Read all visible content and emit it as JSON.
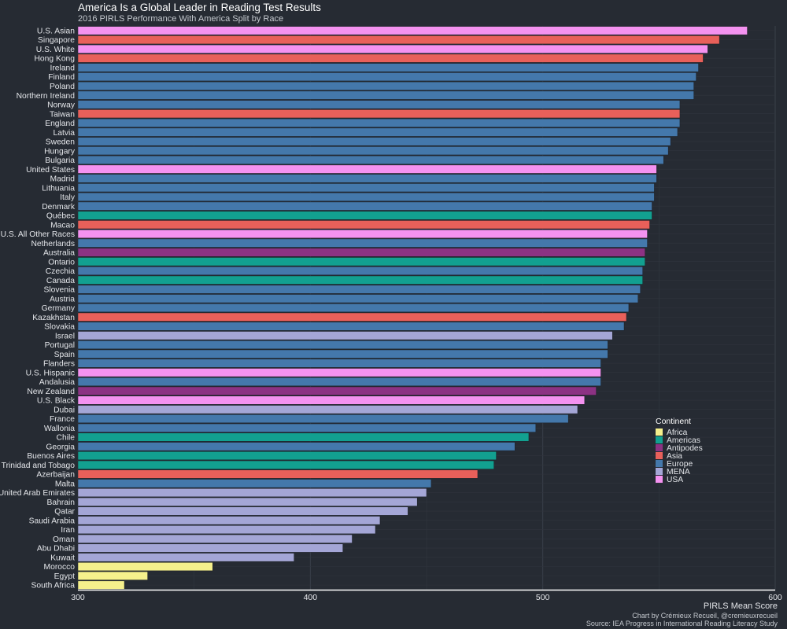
{
  "chart_data": {
    "type": "bar",
    "orientation": "horizontal",
    "title": "America Is a Global Leader in Reading Test Results",
    "subtitle": "2016 PIRLS Performance With America Split by Race",
    "xlabel": "PIRLS Mean Score",
    "ylabel": "",
    "xlim": [
      300,
      600
    ],
    "xticks": [
      300,
      400,
      500,
      600
    ],
    "grid": true,
    "legend_position": "right",
    "legend_title": "Continent",
    "legend": [
      "Africa",
      "Americas",
      "Antipodes",
      "Asia",
      "Europe",
      "MENA",
      "USA"
    ],
    "colors": {
      "Africa": "#f5f08c",
      "Americas": "#12a090",
      "Antipodes": "#8c3283",
      "Asia": "#e8605a",
      "Europe": "#4478ab",
      "MENA": "#a4a6d6",
      "USA": "#f492f0"
    },
    "caption_1": "Chart by Crémieux Recueil, @cremieuxrecueil",
    "caption_2": "Source: IEA Progress in International Reading Literacy Study",
    "bars": [
      {
        "label": "U.S. Asian",
        "value": 588,
        "group": "USA"
      },
      {
        "label": "Singapore",
        "value": 576,
        "group": "Asia"
      },
      {
        "label": "U.S. White",
        "value": 571,
        "group": "USA"
      },
      {
        "label": "Hong Kong",
        "value": 569,
        "group": "Asia"
      },
      {
        "label": "Ireland",
        "value": 567,
        "group": "Europe"
      },
      {
        "label": "Finland",
        "value": 566,
        "group": "Europe"
      },
      {
        "label": "Poland",
        "value": 565,
        "group": "Europe"
      },
      {
        "label": "Northern Ireland",
        "value": 565,
        "group": "Europe"
      },
      {
        "label": "Norway",
        "value": 559,
        "group": "Europe"
      },
      {
        "label": "Taiwan",
        "value": 559,
        "group": "Asia"
      },
      {
        "label": "England",
        "value": 559,
        "group": "Europe"
      },
      {
        "label": "Latvia",
        "value": 558,
        "group": "Europe"
      },
      {
        "label": "Sweden",
        "value": 555,
        "group": "Europe"
      },
      {
        "label": "Hungary",
        "value": 554,
        "group": "Europe"
      },
      {
        "label": "Bulgaria",
        "value": 552,
        "group": "Europe"
      },
      {
        "label": "United States",
        "value": 549,
        "group": "USA"
      },
      {
        "label": "Madrid",
        "value": 549,
        "group": "Europe"
      },
      {
        "label": "Lithuania",
        "value": 548,
        "group": "Europe"
      },
      {
        "label": "Italy",
        "value": 548,
        "group": "Europe"
      },
      {
        "label": "Denmark",
        "value": 547,
        "group": "Europe"
      },
      {
        "label": "Québec",
        "value": 547,
        "group": "Americas"
      },
      {
        "label": "Macao",
        "value": 546,
        "group": "Asia"
      },
      {
        "label": "U.S. All Other Races",
        "value": 545,
        "group": "USA"
      },
      {
        "label": "Netherlands",
        "value": 545,
        "group": "Europe"
      },
      {
        "label": "Australia",
        "value": 544,
        "group": "Antipodes"
      },
      {
        "label": "Ontario",
        "value": 544,
        "group": "Americas"
      },
      {
        "label": "Czechia",
        "value": 543,
        "group": "Europe"
      },
      {
        "label": "Canada",
        "value": 543,
        "group": "Americas"
      },
      {
        "label": "Slovenia",
        "value": 542,
        "group": "Europe"
      },
      {
        "label": "Austria",
        "value": 541,
        "group": "Europe"
      },
      {
        "label": "Germany",
        "value": 537,
        "group": "Europe"
      },
      {
        "label": "Kazakhstan",
        "value": 536,
        "group": "Asia"
      },
      {
        "label": "Slovakia",
        "value": 535,
        "group": "Europe"
      },
      {
        "label": "Israel",
        "value": 530,
        "group": "MENA"
      },
      {
        "label": "Portugal",
        "value": 528,
        "group": "Europe"
      },
      {
        "label": "Spain",
        "value": 528,
        "group": "Europe"
      },
      {
        "label": "Flanders",
        "value": 525,
        "group": "Europe"
      },
      {
        "label": "U.S. Hispanic",
        "value": 525,
        "group": "USA"
      },
      {
        "label": "Andalusia",
        "value": 525,
        "group": "Europe"
      },
      {
        "label": "New Zealand",
        "value": 523,
        "group": "Antipodes"
      },
      {
        "label": "U.S. Black",
        "value": 518,
        "group": "USA"
      },
      {
        "label": "Dubai",
        "value": 515,
        "group": "MENA"
      },
      {
        "label": "France",
        "value": 511,
        "group": "Europe"
      },
      {
        "label": "Wallonia",
        "value": 497,
        "group": "Europe"
      },
      {
        "label": "Chile",
        "value": 494,
        "group": "Americas"
      },
      {
        "label": "Georgia",
        "value": 488,
        "group": "Europe"
      },
      {
        "label": "Buenos Aires",
        "value": 480,
        "group": "Americas"
      },
      {
        "label": "Trinidad and Tobago",
        "value": 479,
        "group": "Americas"
      },
      {
        "label": "Azerbaijan",
        "value": 472,
        "group": "Asia"
      },
      {
        "label": "Malta",
        "value": 452,
        "group": "Europe"
      },
      {
        "label": "United Arab Emirates",
        "value": 450,
        "group": "MENA"
      },
      {
        "label": "Bahrain",
        "value": 446,
        "group": "MENA"
      },
      {
        "label": "Qatar",
        "value": 442,
        "group": "MENA"
      },
      {
        "label": "Saudi Arabia",
        "value": 430,
        "group": "MENA"
      },
      {
        "label": "Iran",
        "value": 428,
        "group": "MENA"
      },
      {
        "label": "Oman",
        "value": 418,
        "group": "MENA"
      },
      {
        "label": "Abu Dhabi",
        "value": 414,
        "group": "MENA"
      },
      {
        "label": "Kuwait",
        "value": 393,
        "group": "MENA"
      },
      {
        "label": "Morocco",
        "value": 358,
        "group": "Africa"
      },
      {
        "label": "Egypt",
        "value": 330,
        "group": "Africa"
      },
      {
        "label": "South Africa",
        "value": 320,
        "group": "Africa"
      }
    ]
  }
}
